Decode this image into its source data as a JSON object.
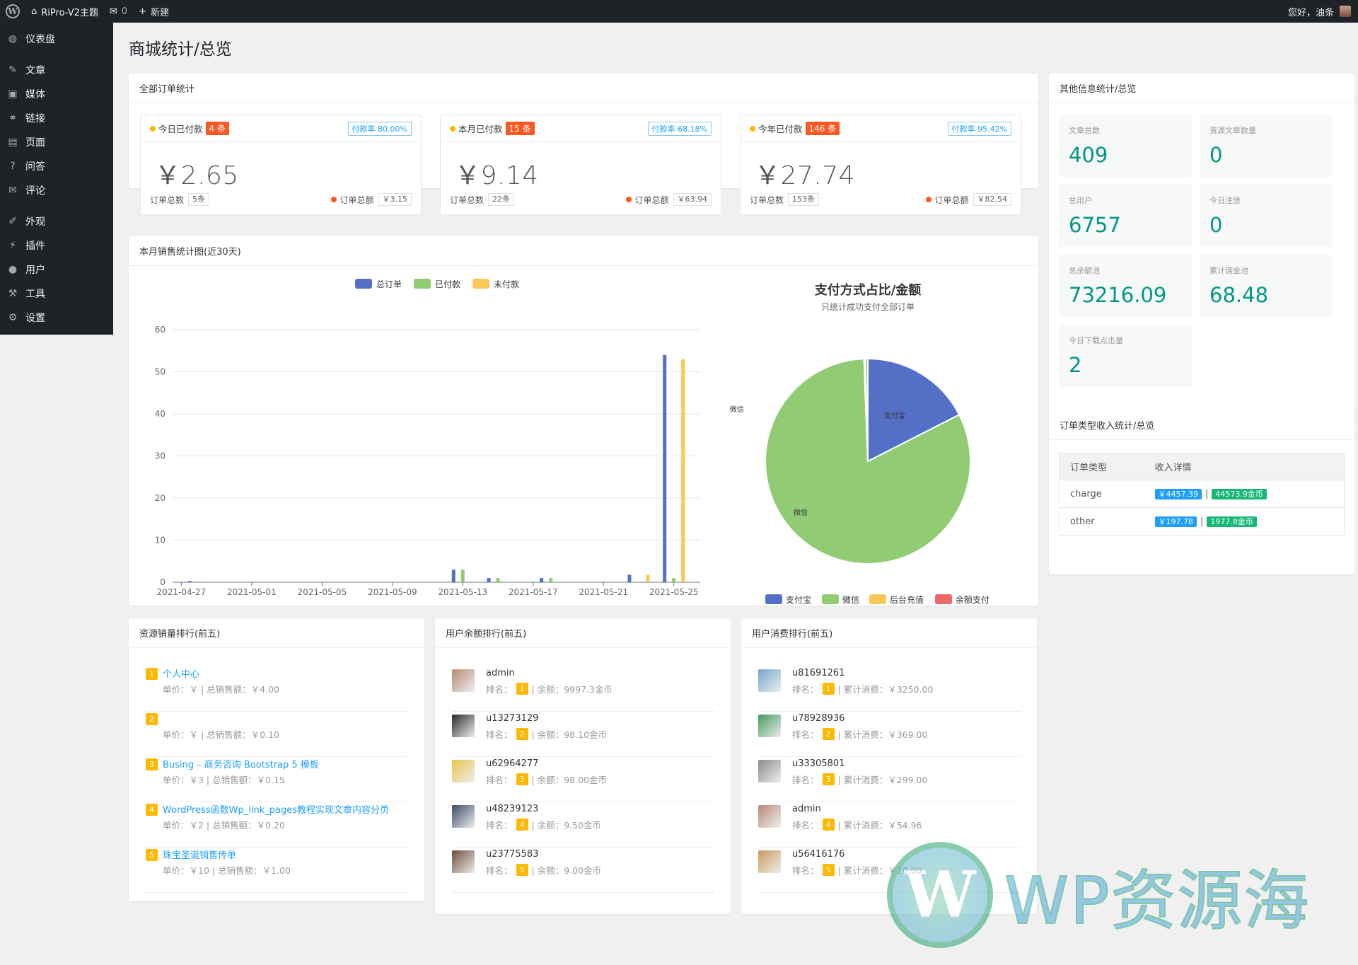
{
  "adminbar": {
    "site_name": "RiPro-V2主题",
    "comments": "0",
    "new_label": "新建",
    "greeting": "您好，油条"
  },
  "menu": [
    {
      "icon": "dashboard-icon",
      "glyph": "◍",
      "label": "仪表盘"
    },
    {
      "icon": "pin-icon",
      "glyph": "✎",
      "label": "文章"
    },
    {
      "icon": "media-icon",
      "glyph": "▣",
      "label": "媒体"
    },
    {
      "icon": "link-icon",
      "glyph": "⚭",
      "label": "链接"
    },
    {
      "icon": "page-icon",
      "glyph": "▤",
      "label": "页面"
    },
    {
      "icon": "question-icon",
      "glyph": "?",
      "label": "问答"
    },
    {
      "icon": "comment-icon",
      "glyph": "✉",
      "label": "评论"
    },
    {
      "icon": "appearance-icon",
      "glyph": "✐",
      "label": "外观"
    },
    {
      "icon": "plugin-icon",
      "glyph": "⚡",
      "label": "插件"
    },
    {
      "icon": "user-icon",
      "glyph": "●",
      "label": "用户"
    },
    {
      "icon": "tools-icon",
      "glyph": "⚒",
      "label": "工具"
    },
    {
      "icon": "settings-icon",
      "glyph": "⚙",
      "label": "设置"
    }
  ],
  "page_title": "商城统计/总览",
  "orders": {
    "title": "全部订单统计",
    "items": [
      {
        "label": "今日已付款",
        "count": "4 条",
        "rate": "付款率 80.00%",
        "amount": "￥2.65",
        "total_label": "订单总数",
        "total": "5条",
        "sum_label": "订单总额",
        "sum": "￥3.15"
      },
      {
        "label": "本月已付款",
        "count": "15 条",
        "rate": "付款率 68.18%",
        "amount": "￥9.14",
        "total_label": "订单总数",
        "total": "22条",
        "sum_label": "订单总额",
        "sum": "￥63.94"
      },
      {
        "label": "今年已付款",
        "count": "146 条",
        "rate": "付款率 95.42%",
        "amount": "￥27.74",
        "total_label": "订单总数",
        "total": "153条",
        "sum_label": "订单总额",
        "sum": "￥82.54"
      }
    ]
  },
  "sales_chart": {
    "title": "本月销售统计图(近30天)"
  },
  "chart_data": [
    {
      "type": "bar",
      "legend": [
        "总订单",
        "已付款",
        "未付款"
      ],
      "colors": [
        "#5470c6",
        "#91cc75",
        "#fac858"
      ],
      "x_ticks": [
        "2021-04-27",
        "2021-05-01",
        "2021-05-05",
        "2021-05-09",
        "2021-05-13",
        "2021-05-17",
        "2021-05-21",
        "2021-05-25"
      ],
      "ylim": [
        0,
        60
      ],
      "y_ticks": [
        0,
        10,
        20,
        30,
        40,
        50,
        60
      ],
      "days": 30,
      "series": [
        {
          "name": "总订单",
          "points": [
            {
              "i": 1,
              "v": 0.3
            },
            {
              "i": 16,
              "v": 3
            },
            {
              "i": 18,
              "v": 1
            },
            {
              "i": 21,
              "v": 1
            },
            {
              "i": 26,
              "v": 1.8
            },
            {
              "i": 28,
              "v": 54
            }
          ]
        },
        {
          "name": "已付款",
          "points": [
            {
              "i": 1,
              "v": 0.2
            },
            {
              "i": 16,
              "v": 3
            },
            {
              "i": 18,
              "v": 1
            },
            {
              "i": 21,
              "v": 1
            },
            {
              "i": 28,
              "v": 1
            }
          ]
        },
        {
          "name": "未付款",
          "points": [
            {
              "i": 26,
              "v": 1.8
            },
            {
              "i": 28,
              "v": 53
            }
          ]
        }
      ]
    },
    {
      "type": "pie",
      "title": "支付方式占比/金额",
      "subtitle": "只统计成功支付全部订单",
      "legend": [
        "支付宝",
        "微信",
        "后台充值",
        "余额支付"
      ],
      "colors": [
        "#5470c6",
        "#91cc75",
        "#fac858",
        "#ee6666"
      ],
      "slices": [
        {
          "name": "支付宝",
          "value": 17.5
        },
        {
          "name": "微信",
          "value": 81.9
        },
        {
          "name": "后台充值",
          "value": 0.1
        },
        {
          "name": "余额支付",
          "value": 0.1
        },
        {
          "name": "微信",
          "value": 0.4
        }
      ],
      "labels": [
        "支付宝",
        "微信",
        "微信"
      ]
    }
  ],
  "info": {
    "title": "其他信息统计/总览",
    "tiles": [
      {
        "label": "文章总数",
        "value": "409"
      },
      {
        "label": "资源文章数量",
        "value": "0"
      },
      {
        "label": "总用户",
        "value": "6757"
      },
      {
        "label": "今日注册",
        "value": "0"
      },
      {
        "label": "总余额池",
        "value": "73216.09"
      },
      {
        "label": "累计佣金池",
        "value": "68.48"
      },
      {
        "label": "今日下载点击量",
        "value": "2"
      }
    ]
  },
  "order_types": {
    "title": "订单类型收入统计/总览",
    "headers": [
      "订单类型",
      "收入详情"
    ],
    "rows": [
      {
        "type": "charge",
        "money": "￥4457.39",
        "sep": "|",
        "coin": "44573.9金币"
      },
      {
        "type": "other",
        "money": "￥197.78",
        "sep": "|",
        "coin": "1977.8金币"
      }
    ]
  },
  "resource_rank": {
    "title": "资源销量排行(前五)",
    "items": [
      {
        "num": "1",
        "title": "个人中心",
        "sub": "单价：￥ | 总销售额：￥4.00"
      },
      {
        "num": "2",
        "title": "",
        "sub": "单价：￥ | 总销售额：￥0.10"
      },
      {
        "num": "3",
        "title": "Busing – 商务咨询 Bootstrap 5 模板",
        "sub": "单价：￥3 | 总销售额：￥0.15"
      },
      {
        "num": "4",
        "title": "WordPress函数Wp_link_pages教程实现文章内容分页",
        "sub": "单价：￥2 | 总销售额：￥0.20"
      },
      {
        "num": "5",
        "title": "珠宝圣诞销售传单",
        "sub": "单价：￥10 | 总销售额：￥1.00"
      }
    ]
  },
  "balance_rank": {
    "title": "用户余额排行(前五)",
    "rank_label": "排名：",
    "items": [
      {
        "name": "admin",
        "num": "1",
        "detail": "| 余额：9997.3金币",
        "color": "#b88a74"
      },
      {
        "name": "u13273129",
        "num": "2",
        "detail": "| 余额：98.10金币",
        "color": "#2a2a2a"
      },
      {
        "name": "u62964277",
        "num": "3",
        "detail": "| 余额：98.00金币",
        "color": "#e8c34a"
      },
      {
        "name": "u48239123",
        "num": "4",
        "detail": "| 余额：9.50金币",
        "color": "#3b4a66"
      },
      {
        "name": "u23775583",
        "num": "5",
        "detail": "| 余额：9.00金币",
        "color": "#6b4e3a"
      }
    ]
  },
  "spend_rank": {
    "title": "用户消费排行(前五)",
    "rank_label": "排名：",
    "items": [
      {
        "name": "u81691261",
        "num": "1",
        "detail": "| 累计消费：￥3250.00",
        "color": "#6fa8c9"
      },
      {
        "name": "u78928936",
        "num": "2",
        "detail": "| 累计消费：￥369.00",
        "color": "#3f9a5a"
      },
      {
        "name": "u33305801",
        "num": "3",
        "detail": "| 累计消费：￥299.00",
        "color": "#8a8a8a"
      },
      {
        "name": "admin",
        "num": "4",
        "detail": "| 累计消费：￥54.96",
        "color": "#b88a74"
      },
      {
        "name": "u56416176",
        "num": "5",
        "detail": "| 累计消费：￥20.00",
        "color": "#c99a5a"
      }
    ]
  },
  "watermark": {
    "text": "WP资源海"
  }
}
